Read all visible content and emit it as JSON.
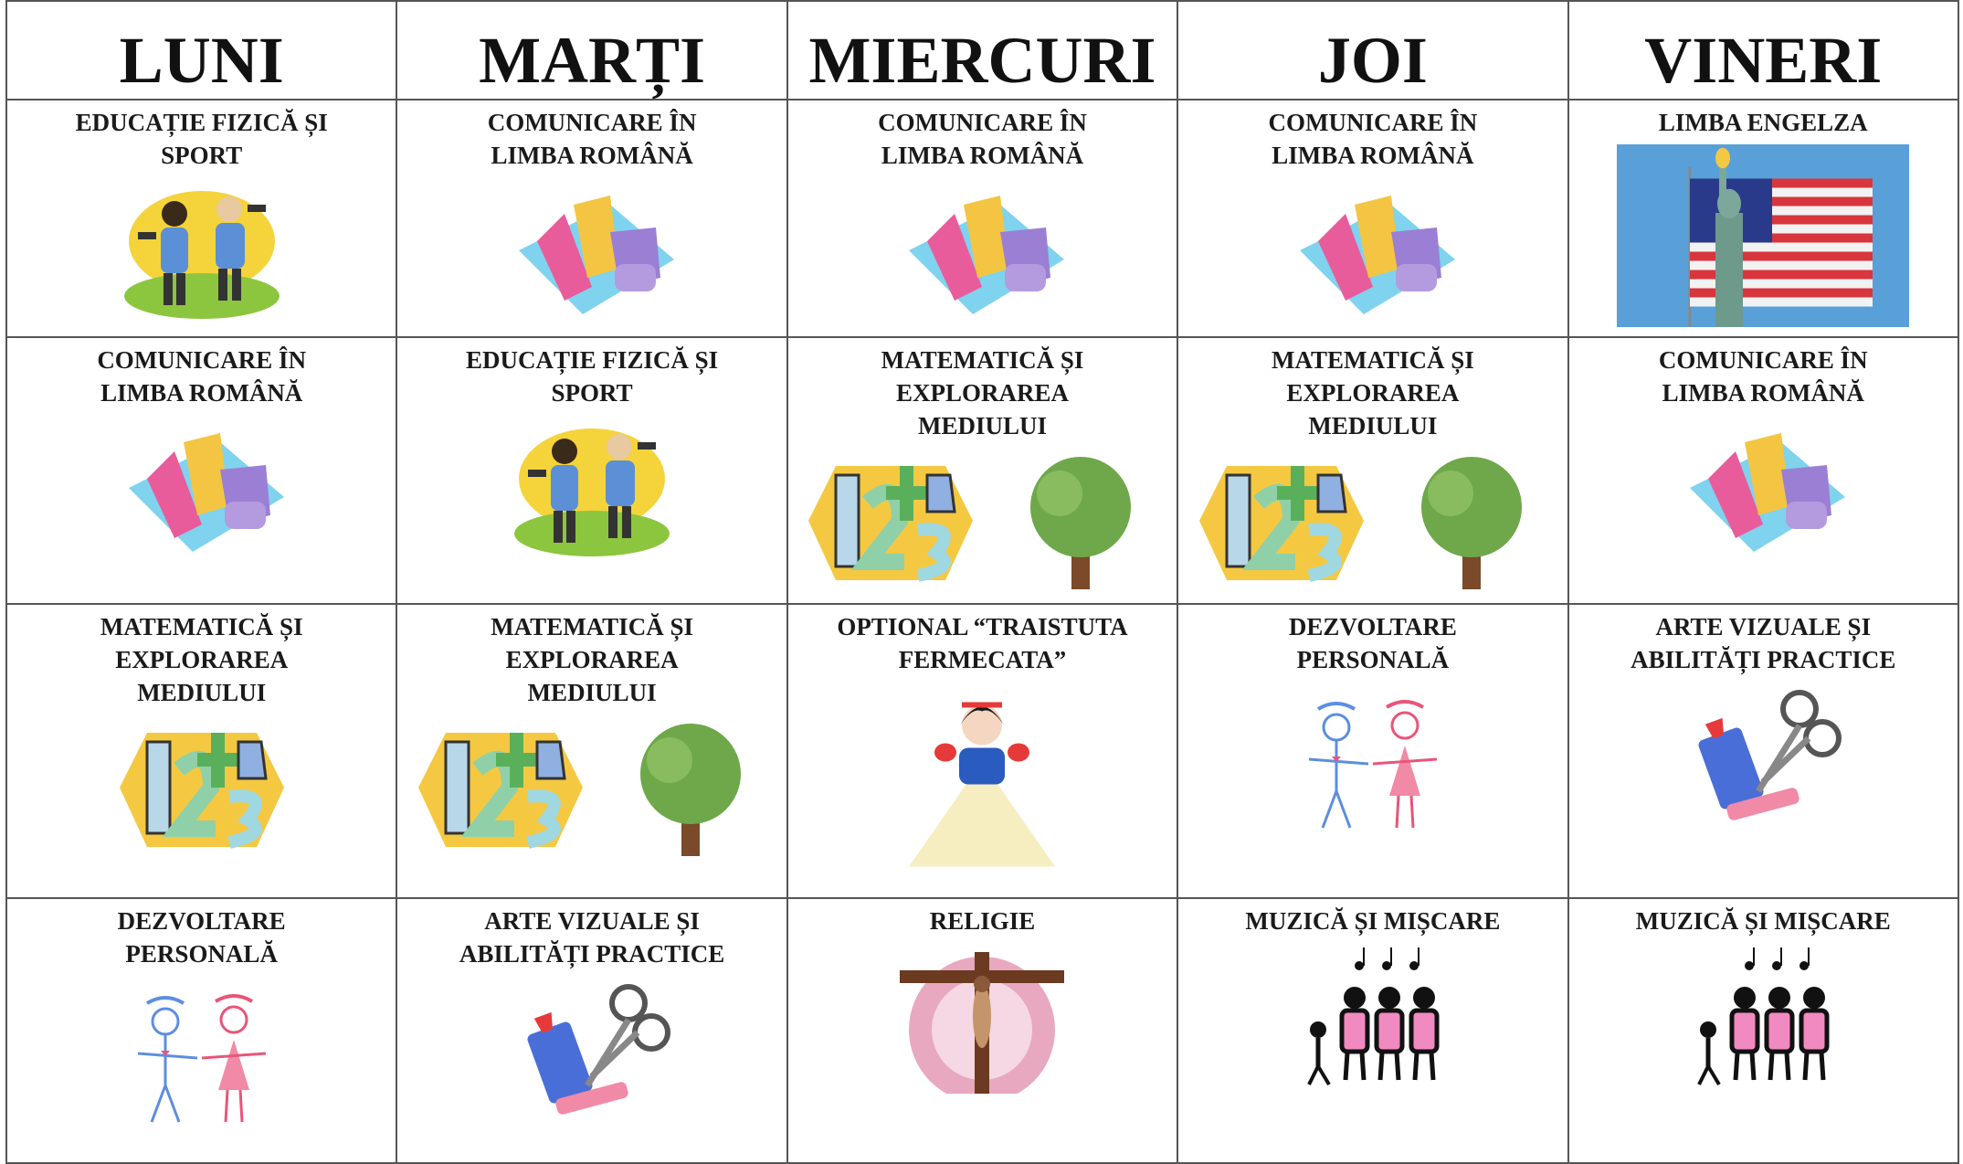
{
  "table": {
    "header": [
      "LUNI",
      "MARȚI",
      "MIERCURI",
      "JOI",
      "VINERI"
    ],
    "rows": [
      [
        "EDUCAȚIE FIZICĂ ȘI SPORT",
        "COMUNICARE ÎN LIMBA ROMÂNĂ",
        "COMUNICARE ÎN LIMBA ROMÂNĂ",
        "COMUNICARE ÎN LIMBA ROMÂNĂ",
        "LIMBA ENGELZA"
      ],
      [
        "COMUNICARE ÎN LIMBA ROMÂNĂ",
        "EDUCAȚIE FIZICĂ ȘI SPORT",
        "MATEMATICĂ ȘI EXPLORAREA MEDIULUI",
        "MATEMATICĂ ȘI EXPLORAREA MEDIULUI",
        "COMUNICARE ÎN LIMBA ROMÂNĂ"
      ],
      [
        "MATEMATICĂ ȘI EXPLORAREA MEDIULUI",
        "MATEMATICĂ ȘI EXPLORAREA MEDIULUI",
        "OPTIONAL “TRAISTUTA FERMECATA”",
        "DEZVOLTARE PERSONALĂ",
        "ARTE VIZUALE ȘI ABILITĂȚI PRACTICE"
      ],
      [
        "DEZVOLTARE PERSONALĂ",
        "ARTE VIZUALE ȘI ABILITĂȚI PRACTICE",
        "RELIGIE",
        "MUZICĂ ȘI MIȘCARE",
        "MUZICĂ ȘI MIȘCARE"
      ]
    ]
  }
}
